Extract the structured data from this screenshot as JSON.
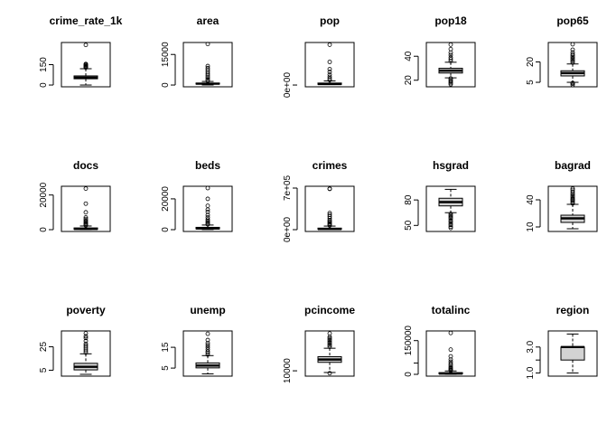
{
  "chart_data": [
    {
      "type": "boxplot",
      "title": "crime_rate_1k",
      "ylim": [
        0,
        300
      ],
      "yticks": [
        0,
        150
      ],
      "ytick_labels": [
        "0",
        "150"
      ],
      "q1": 46,
      "median": 55,
      "q3": 67,
      "whisker_low": 0,
      "whisker_high": 120,
      "outliers": [
        128,
        132,
        136,
        140,
        146,
        150,
        155,
        295
      ]
    },
    {
      "type": "boxplot",
      "title": "area",
      "ylim": [
        0,
        20000
      ],
      "yticks": [
        0,
        15000
      ],
      "ytick_labels": [
        "0",
        "15000"
      ],
      "q1": 450,
      "median": 650,
      "q3": 950,
      "whisker_low": 25,
      "whisker_high": 1750,
      "outliers": [
        2000,
        2600,
        3300,
        4000,
        4800,
        5600,
        6500,
        7400,
        8300,
        9300,
        20100
      ]
    },
    {
      "type": "boxplot",
      "title": "pop",
      "ylim": [
        0,
        9000000
      ],
      "yticks": [
        0
      ],
      "ytick_labels": [
        "0e+00"
      ],
      "q1": 140000,
      "median": 220000,
      "q3": 440000,
      "whisker_low": 100000,
      "whisker_high": 900000,
      "outliers": [
        1100000,
        1400000,
        1800000,
        2300000,
        2900000,
        3500000,
        5100000,
        8900000
      ]
    },
    {
      "type": "boxplot",
      "title": "pop18",
      "ylim": [
        16,
        50
      ],
      "yticks": [
        20,
        40
      ],
      "ytick_labels": [
        "20",
        "40"
      ],
      "q1": 26,
      "median": 28,
      "q3": 30,
      "whisker_low": 22,
      "whisker_high": 35,
      "outliers": [
        16.5,
        17.5,
        18.5,
        19.5,
        20.5,
        21.5,
        36,
        37.5,
        39,
        41,
        43,
        46,
        49.7
      ]
    },
    {
      "type": "boxplot",
      "title": "pop65",
      "ylim": [
        3,
        33
      ],
      "yticks": [
        5,
        20
      ],
      "ytick_labels": [
        "5",
        "20"
      ],
      "q1": 9.7,
      "median": 11.8,
      "q3": 13.5,
      "whisker_low": 5,
      "whisker_high": 18.5,
      "outliers": [
        3,
        4,
        4.5,
        19.5,
        20.5,
        21.5,
        22.5,
        23.5,
        24.5,
        25.5,
        27,
        29,
        33
      ]
    },
    {
      "type": "boxplot",
      "title": "docs",
      "ylim": [
        0,
        24000
      ],
      "yticks": [
        0,
        20000
      ],
      "ytick_labels": [
        "0",
        "20000"
      ],
      "q1": 180,
      "median": 400,
      "q3": 1000,
      "whisker_low": 40,
      "whisker_high": 2100,
      "outliers": [
        2400,
        2900,
        3400,
        4000,
        4700,
        5400,
        6200,
        7100,
        10000,
        15000,
        23700
      ]
    },
    {
      "type": "boxplot",
      "title": "beds",
      "ylim": [
        0,
        27000
      ],
      "yticks": [
        0,
        20000
      ],
      "ytick_labels": [
        "0",
        "20000"
      ],
      "q1": 500,
      "median": 800,
      "q3": 1500,
      "whisker_low": 90,
      "whisker_high": 3000,
      "outliers": [
        3400,
        4000,
        4800,
        5600,
        6600,
        8000,
        9500,
        11500,
        13000,
        15500,
        20000,
        27000
      ]
    },
    {
      "type": "boxplot",
      "title": "crimes",
      "ylim": [
        0,
        700000
      ],
      "yticks": [
        0,
        700000
      ],
      "ytick_labels": [
        "0e+00",
        "7e+05"
      ],
      "q1": 6000,
      "median": 11000,
      "q3": 26000,
      "whisker_low": 500,
      "whisker_high": 60000,
      "outliers": [
        70000,
        85000,
        100000,
        120000,
        140000,
        160000,
        190000,
        220000,
        250000,
        280000,
        685000,
        690000
      ]
    },
    {
      "type": "boxplot",
      "title": "hsgrad",
      "ylim": [
        45,
        94
      ],
      "yticks": [
        50,
        80
      ],
      "ytick_labels": [
        "50",
        "80"
      ],
      "q1": 73,
      "median": 77.5,
      "q3": 82,
      "whisker_low": 65,
      "whisker_high": 92.5,
      "outliers": [
        63.5,
        62,
        60.5,
        59,
        57.5,
        55.5,
        54,
        52,
        50.5,
        48.5,
        47
      ]
    },
    {
      "type": "boxplot",
      "title": "bagrad",
      "ylim": [
        7,
        53
      ],
      "yticks": [
        10,
        40
      ],
      "ytick_labels": [
        "10",
        "40"
      ],
      "q1": 15,
      "median": 19.5,
      "q3": 23,
      "whisker_low": 8,
      "whisker_high": 35,
      "outliers": [
        36,
        37.5,
        39,
        40,
        41,
        42.5,
        44,
        45.5,
        47,
        49,
        51,
        52.5
      ]
    },
    {
      "type": "boxplot",
      "title": "poverty",
      "ylim": [
        1.5,
        37
      ],
      "yticks": [
        5,
        25
      ],
      "ytick_labels": [
        "5",
        "25"
      ],
      "q1": 5.3,
      "median": 7.9,
      "q3": 10.9,
      "whisker_low": 1.5,
      "whisker_high": 19,
      "outliers": [
        20,
        21.5,
        23,
        24.5,
        26,
        27.5,
        30,
        32.5,
        34,
        36.5
      ]
    },
    {
      "type": "boxplot",
      "title": "unemp",
      "ylim": [
        2,
        22
      ],
      "yticks": [
        5,
        15
      ],
      "ytick_labels": [
        "5",
        "15"
      ],
      "q1": 5.1,
      "median": 6.2,
      "q3": 7.5,
      "whisker_low": 2.2,
      "whisker_high": 11,
      "outliers": [
        11.5,
        12.3,
        13,
        14,
        15,
        16,
        17,
        18.5,
        21.5
      ]
    },
    {
      "type": "boxplot",
      "title": "pcincome",
      "ylim": [
        7500,
        37000
      ],
      "yticks": [
        10000
      ],
      "ytick_labels": [
        "10000"
      ],
      "q1": 16000,
      "median": 18000,
      "q3": 20000,
      "whisker_low": 8800,
      "whisker_high": 26000,
      "outliers": [
        8300,
        27000,
        28000,
        29000,
        30000,
        31000,
        32000,
        33000,
        34000,
        36500
      ]
    },
    {
      "type": "boxplot",
      "title": "totalinc",
      "ylim": [
        0,
        185000
      ],
      "yticks": [
        0,
        50000,
        150000
      ],
      "ytick_labels": [
        "0",
        "",
        "150000"
      ],
      "q1": 2000,
      "median": 3500,
      "q3": 7500,
      "whisker_low": 300,
      "whisker_high": 15000,
      "outliers": [
        17000,
        20000,
        24000,
        28000,
        33000,
        40000,
        47000,
        56000,
        66000,
        80000,
        110000,
        184000
      ]
    },
    {
      "type": "boxplot",
      "title": "region",
      "ylim": [
        0.9,
        4.1
      ],
      "yticks": [
        1,
        2,
        3
      ],
      "ytick_labels": [
        "1.0",
        "",
        "3.0"
      ],
      "q1": 2,
      "median": 3,
      "q3": 3,
      "whisker_low": 1,
      "whisker_high": 4,
      "outliers": []
    }
  ]
}
